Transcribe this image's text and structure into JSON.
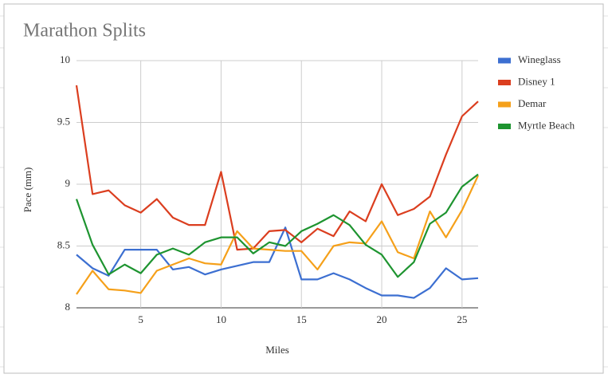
{
  "chart_data": {
    "type": "line",
    "title": "Marathon Splits",
    "x_label": "Miles",
    "y_label": "Pace (mm)",
    "x": [
      1,
      2,
      3,
      4,
      5,
      6,
      7,
      8,
      9,
      10,
      11,
      12,
      13,
      14,
      15,
      16,
      17,
      18,
      19,
      20,
      21,
      22,
      23,
      24,
      25,
      26
    ],
    "series": [
      {
        "name": "Wineglass",
        "color": "#3c6fd1",
        "values": [
          8.43,
          8.32,
          8.26,
          8.47,
          8.47,
          8.47,
          8.31,
          8.33,
          8.27,
          8.31,
          8.34,
          8.37,
          8.37,
          8.65,
          8.23,
          8.23,
          8.28,
          8.23,
          8.16,
          8.1,
          8.1,
          8.08,
          8.16,
          8.32,
          8.23,
          8.24
        ]
      },
      {
        "name": "Disney 1",
        "color": "#db3e1f",
        "values": [
          9.8,
          8.92,
          8.95,
          8.83,
          8.77,
          8.88,
          8.73,
          8.67,
          8.67,
          9.1,
          8.47,
          8.48,
          8.62,
          8.63,
          8.53,
          8.64,
          8.58,
          8.78,
          8.7,
          9.0,
          8.75,
          8.8,
          8.9,
          9.24,
          9.55,
          9.67
        ]
      },
      {
        "name": "Demar",
        "color": "#f5a01a",
        "values": [
          8.11,
          8.3,
          8.15,
          8.14,
          8.12,
          8.3,
          8.35,
          8.4,
          8.36,
          8.35,
          8.62,
          8.48,
          8.47,
          8.46,
          8.46,
          8.31,
          8.5,
          8.53,
          8.52,
          8.7,
          8.45,
          8.4,
          8.78,
          8.57,
          8.79,
          9.07
        ]
      },
      {
        "name": "Myrtle Beach",
        "color": "#1e9430",
        "values": [
          8.88,
          8.51,
          8.27,
          8.35,
          8.28,
          8.43,
          8.48,
          8.43,
          8.53,
          8.57,
          8.57,
          8.44,
          8.53,
          8.5,
          8.62,
          8.68,
          8.75,
          8.67,
          8.51,
          8.43,
          8.25,
          8.37,
          8.68,
          8.77,
          8.98,
          9.08
        ]
      }
    ],
    "xlim": [
      1,
      26
    ],
    "xticks": [
      5,
      10,
      15,
      20,
      25
    ],
    "ylim": [
      8,
      10
    ],
    "yticks": [
      8,
      8.5,
      9,
      9.5,
      10
    ],
    "grid": true,
    "legend": "right"
  }
}
